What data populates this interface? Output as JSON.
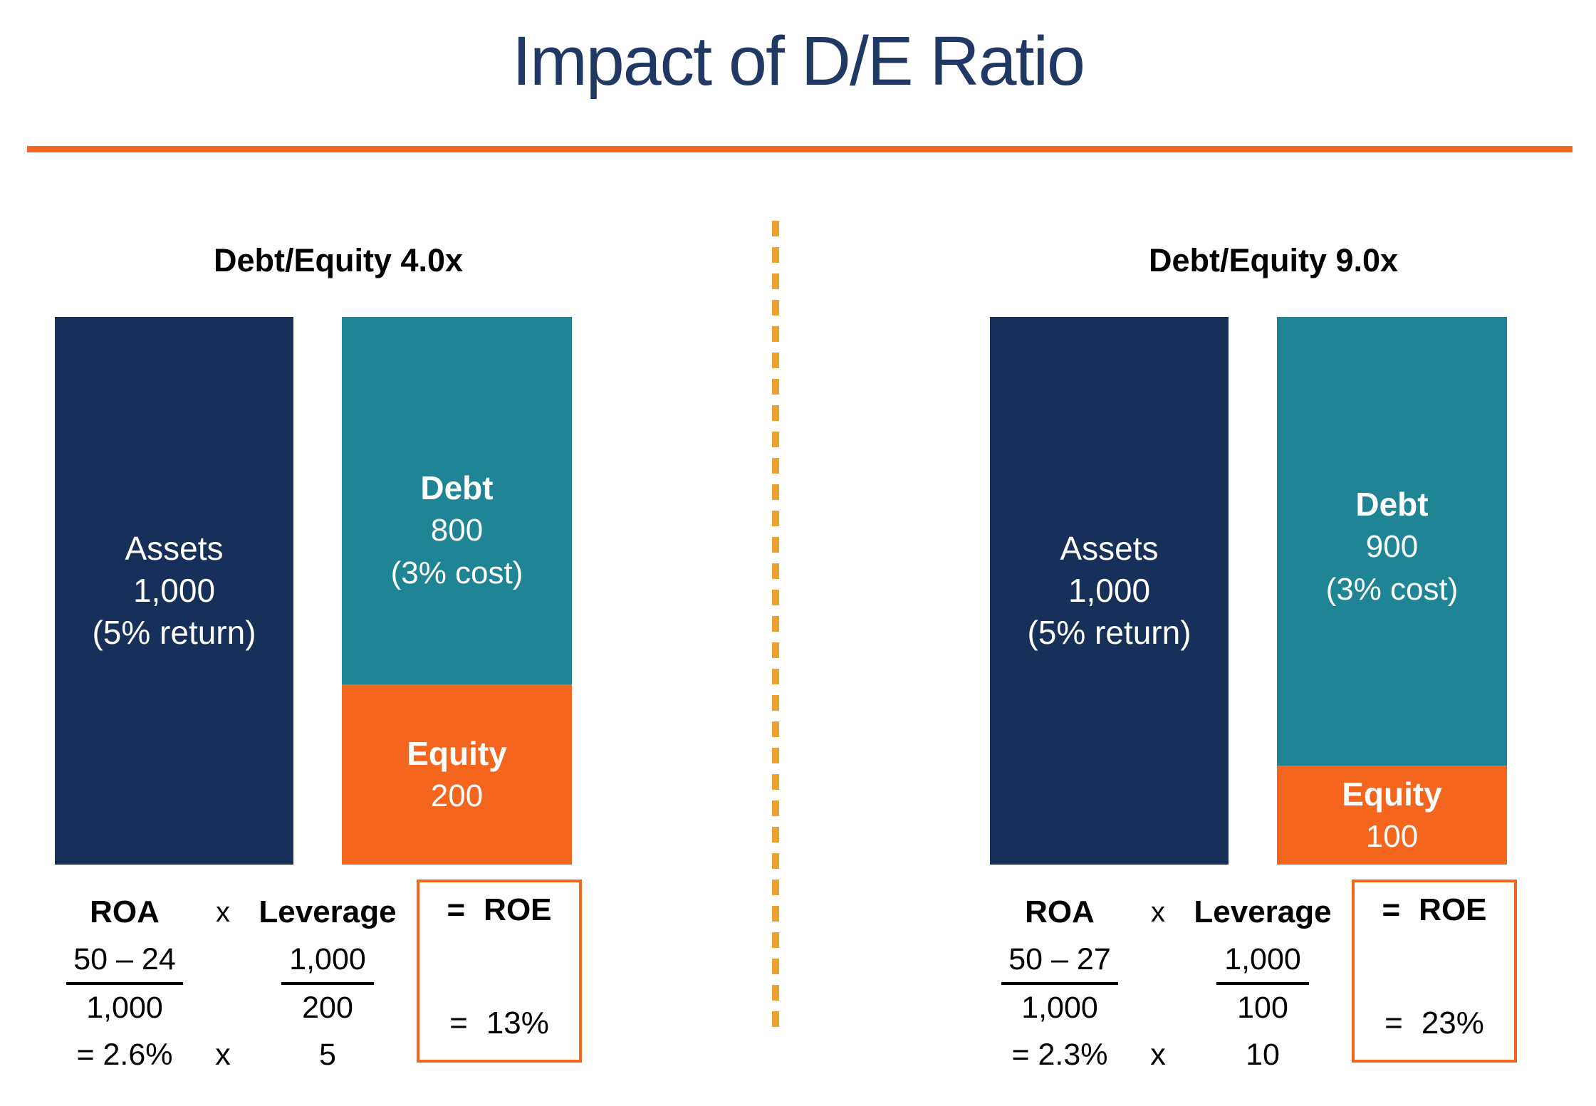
{
  "title": "Impact of D/E Ratio",
  "colors": {
    "title_navy": "#1F3864",
    "assets_navy": "#16305A",
    "debt_teal": "#1F8493",
    "equity_orange": "#F4651D",
    "divider_amber": "#EDA130",
    "rule_orange": "#F4651D",
    "bar_text": "#ffffff",
    "formula_text": "#000000"
  },
  "chart_data": {
    "type": "bar",
    "title": "Impact of D/E Ratio",
    "panels": [
      {
        "label": "Debt/Equity 4.0x",
        "assets": 1000,
        "asset_return_pct": 5,
        "debt": 800,
        "debt_cost_pct": 3,
        "equity": 200,
        "roa_pct": 2.6,
        "leverage": 5,
        "roe_pct": 13
      },
      {
        "label": "Debt/Equity 9.0x",
        "assets": 1000,
        "asset_return_pct": 5,
        "debt": 900,
        "debt_cost_pct": 3,
        "equity": 100,
        "roa_pct": 2.3,
        "leverage": 10,
        "roe_pct": 23
      }
    ]
  },
  "panels": [
    {
      "heading": "Debt/Equity 4.0x",
      "assets_bar": {
        "label": "Assets",
        "value": "1,000",
        "note": "(5% return)"
      },
      "debt_segment": {
        "label": "Debt",
        "value": "800",
        "note": "(3% cost)"
      },
      "equity_segment": {
        "label": "Equity",
        "value": "200"
      },
      "formula": {
        "col1_header": "ROA",
        "times": "x",
        "col2_header": "Leverage",
        "roa_numerator": "50 – 24",
        "roa_denominator": "1,000",
        "roa_result": "= 2.6%",
        "times2": "x",
        "lev_numerator": "1,000",
        "lev_denominator": "200",
        "lev_result": "5",
        "roe_equals": "=",
        "roe_header": "ROE",
        "roe_result_equals": "=",
        "roe_result": "13%"
      }
    },
    {
      "heading": "Debt/Equity 9.0x",
      "assets_bar": {
        "label": "Assets",
        "value": "1,000",
        "note": "(5% return)"
      },
      "debt_segment": {
        "label": "Debt",
        "value": "900",
        "note": "(3% cost)"
      },
      "equity_segment": {
        "label": "Equity",
        "value": "100"
      },
      "formula": {
        "col1_header": "ROA",
        "times": "x",
        "col2_header": "Leverage",
        "roa_numerator": "50 – 27",
        "roa_denominator": "1,000",
        "roa_result": "= 2.3%",
        "times2": "x",
        "lev_numerator": "1,000",
        "lev_denominator": "100",
        "lev_result": "10",
        "roe_equals": "=",
        "roe_header": "ROE",
        "roe_result_equals": "=",
        "roe_result": "23%"
      }
    }
  ]
}
